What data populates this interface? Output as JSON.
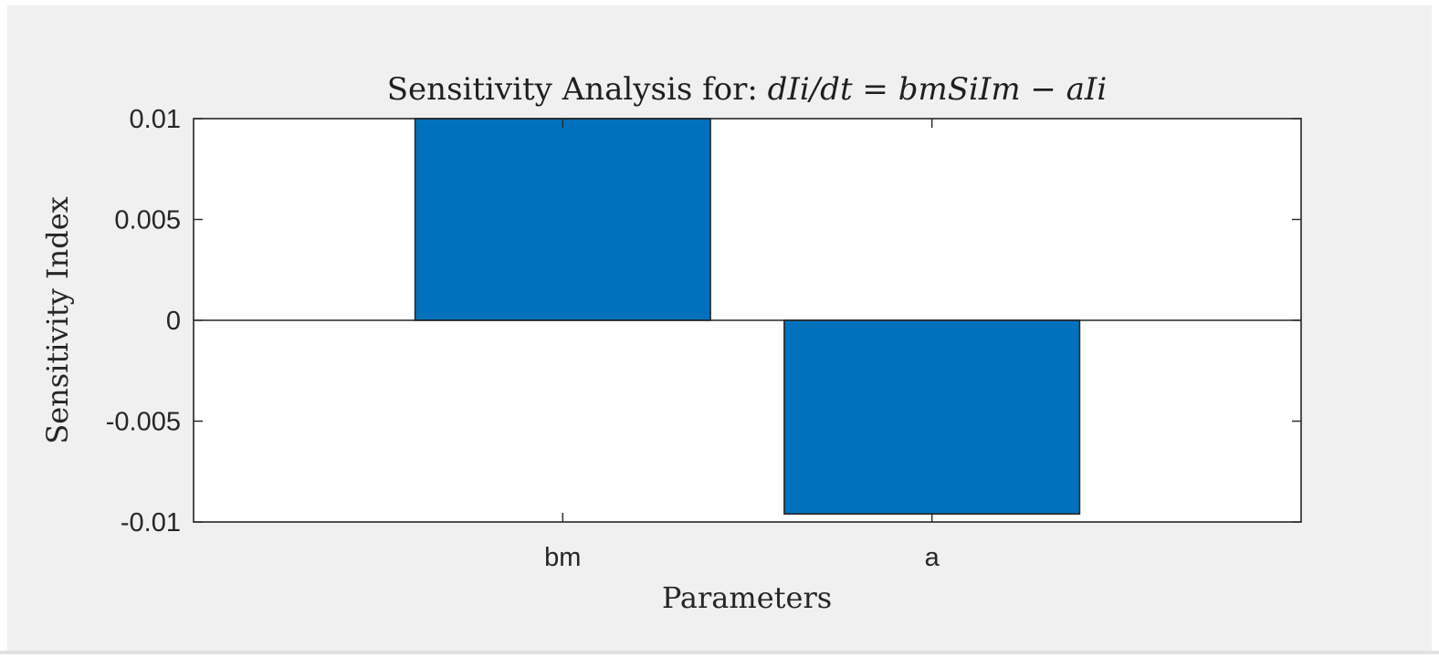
{
  "chart_data": {
    "type": "bar",
    "title_prefix": "Sensitivity Analysis for: ",
    "title_math": "dIi/dt = bmSiIm − aIi",
    "xlabel": "Parameters",
    "ylabel": "Sensitivity Index",
    "categories": [
      "bm",
      "a"
    ],
    "values": [
      0.0102,
      -0.0096
    ],
    "ylim": [
      -0.01,
      0.01
    ],
    "yticks": [
      0.01,
      0.005,
      0,
      -0.005,
      -0.01
    ],
    "ytick_labels": [
      "0.01",
      "0.005",
      "0",
      "-0.005",
      "-0.01"
    ],
    "bar_color": "#0072bd",
    "grid": false,
    "legend": "none"
  },
  "colors": {
    "figure_background": "#f0f0f0",
    "axes_background": "#ffffff",
    "axes_edge": "#262626",
    "bar_edge": "#262626"
  }
}
